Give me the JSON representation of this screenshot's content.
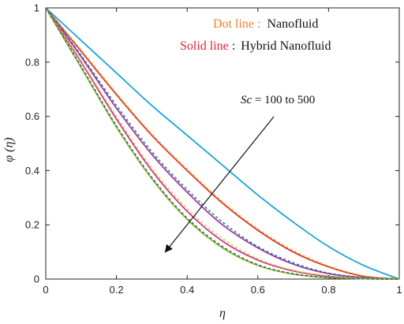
{
  "chart_data": {
    "type": "line",
    "xlabel": "η",
    "ylabel": "φ (η)",
    "xlim": [
      0,
      1
    ],
    "ylim": [
      0,
      1
    ],
    "x_ticks": [
      "0",
      "0.2",
      "0.4",
      "0.6",
      "0.8",
      "1"
    ],
    "y_ticks": [
      "0",
      "0.2",
      "0.4",
      "0.6",
      "0.8",
      "1"
    ],
    "grid": false,
    "legend_placement": "top-right",
    "legend": {
      "dot": {
        "key": "Dot line",
        "sep": "  :",
        "text": "Nanofluid"
      },
      "solid": {
        "key": "Solid line",
        "sep": ":",
        "text": "Hybrid Nanofluid"
      }
    },
    "annotation": {
      "var": "Sc",
      "text": " = 100 to 500"
    },
    "colors": {
      "dot_key": "#f07f2a",
      "solid_key": "#e0262b",
      "text": "#111111",
      "arrow": "#111111",
      "axis": "#222222"
    },
    "series": [
      {
        "style": "solid",
        "color": "#1aa3dc",
        "x": [
          0,
          0.1,
          0.2,
          0.3,
          0.4,
          0.5,
          0.6,
          0.7,
          0.8,
          0.9,
          1
        ],
        "y": [
          1,
          0.88,
          0.76,
          0.64,
          0.53,
          0.42,
          0.31,
          0.21,
          0.12,
          0.05,
          0
        ]
      },
      {
        "style": "solid",
        "color": "#d9342b",
        "x": [
          0,
          0.1,
          0.2,
          0.3,
          0.4,
          0.5,
          0.6,
          0.7,
          0.8,
          0.9,
          1
        ],
        "y": [
          1,
          0.84,
          0.68,
          0.53,
          0.4,
          0.28,
          0.18,
          0.1,
          0.045,
          0.01,
          0
        ]
      },
      {
        "style": "dotted",
        "color": "#f2a23a",
        "x": [
          0,
          0.1,
          0.2,
          0.3,
          0.4,
          0.5,
          0.6,
          0.7,
          0.8,
          0.9,
          1
        ],
        "y": [
          1,
          0.845,
          0.685,
          0.535,
          0.405,
          0.285,
          0.185,
          0.105,
          0.048,
          0.012,
          0
        ]
      },
      {
        "style": "solid",
        "color": "#9b3f9a",
        "x": [
          0,
          0.1,
          0.2,
          0.3,
          0.4,
          0.5,
          0.6,
          0.7,
          0.8,
          0.9,
          1
        ],
        "y": [
          1,
          0.82,
          0.63,
          0.46,
          0.32,
          0.2,
          0.115,
          0.055,
          0.02,
          0.005,
          0
        ]
      },
      {
        "style": "dotted",
        "color": "#2b6ea8",
        "x": [
          0,
          0.1,
          0.2,
          0.3,
          0.4,
          0.5,
          0.6,
          0.7,
          0.8,
          0.9,
          1
        ],
        "y": [
          1,
          0.825,
          0.64,
          0.47,
          0.33,
          0.21,
          0.12,
          0.06,
          0.022,
          0.006,
          0
        ]
      },
      {
        "style": "solid",
        "color": "#c93b86",
        "x": [
          0,
          0.1,
          0.2,
          0.3,
          0.4,
          0.5,
          0.6,
          0.7,
          0.8,
          0.9,
          1
        ],
        "y": [
          1,
          0.8,
          0.59,
          0.4,
          0.25,
          0.14,
          0.07,
          0.03,
          0.01,
          0.002,
          0
        ]
      },
      {
        "style": "dotted",
        "color": "#e8c84a",
        "x": [
          0,
          0.1,
          0.2,
          0.3,
          0.4,
          0.5,
          0.6,
          0.7,
          0.8,
          0.9,
          1
        ],
        "y": [
          1,
          0.805,
          0.6,
          0.41,
          0.26,
          0.15,
          0.075,
          0.033,
          0.012,
          0.003,
          0
        ]
      },
      {
        "style": "solid",
        "color": "#8fb83a",
        "x": [
          0,
          0.1,
          0.2,
          0.3,
          0.4,
          0.5,
          0.6,
          0.7,
          0.8,
          0.9,
          1
        ],
        "y": [
          1,
          0.78,
          0.56,
          0.37,
          0.22,
          0.115,
          0.05,
          0.018,
          0.005,
          0.001,
          0
        ]
      },
      {
        "style": "dotted",
        "color": "#2a6f52",
        "x": [
          0,
          0.1,
          0.2,
          0.3,
          0.4,
          0.5,
          0.6,
          0.7,
          0.8,
          0.9,
          1
        ],
        "y": [
          1,
          0.785,
          0.565,
          0.375,
          0.225,
          0.12,
          0.053,
          0.02,
          0.006,
          0.001,
          0
        ]
      }
    ]
  }
}
